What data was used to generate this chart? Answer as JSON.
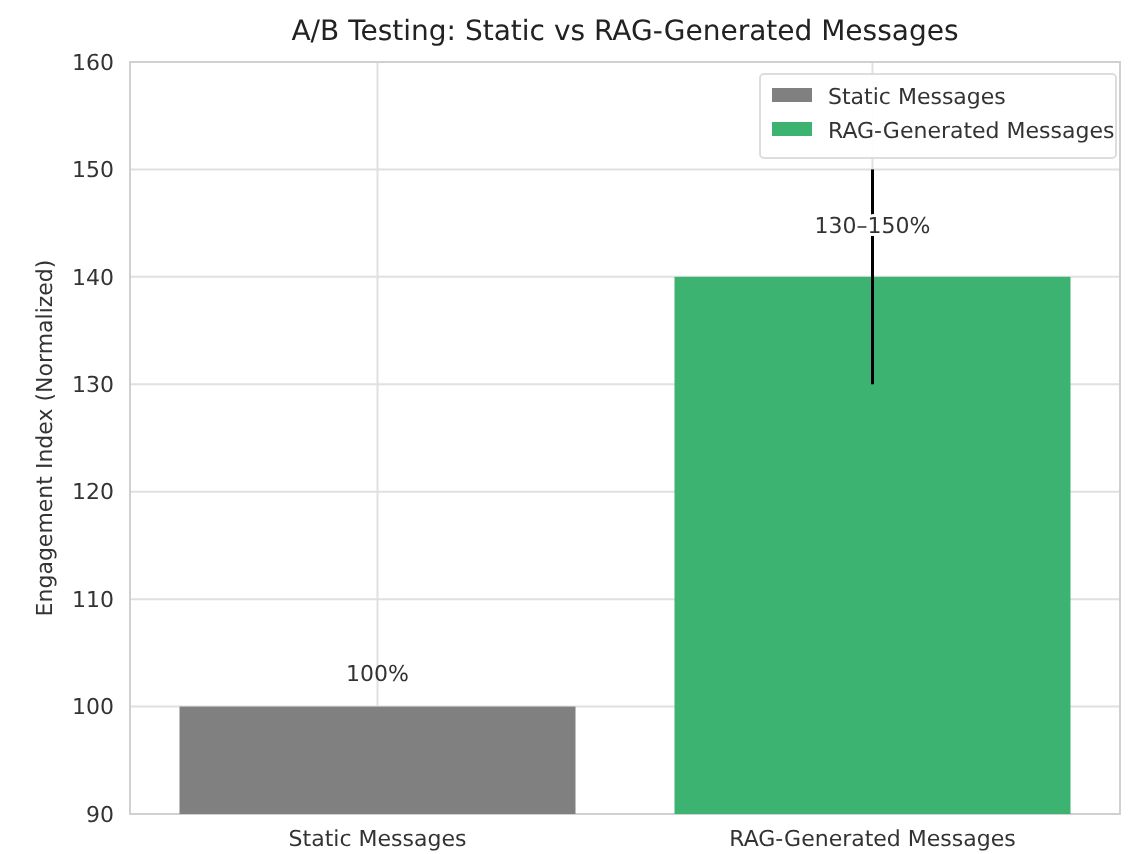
{
  "chart_data": {
    "type": "bar",
    "title": "A/B Testing: Static vs RAG-Generated Messages",
    "ylabel": "Engagement Index (Normalized)",
    "categories": [
      "Static Messages",
      "RAG-Generated Messages"
    ],
    "series": [
      {
        "name": "Static Messages",
        "color": "#808080",
        "values": [
          100,
          null
        ],
        "value_labels": [
          "100%",
          null
        ]
      },
      {
        "name": "RAG-Generated Messages",
        "color": "#3cb371",
        "values": [
          null,
          140
        ],
        "errors": [
          null,
          10
        ]
      }
    ],
    "annotations": [
      {
        "text": "130–150%",
        "x": "RAG-Generated Messages",
        "y": 140
      }
    ],
    "ylim": [
      90,
      160
    ],
    "yticks": [
      90,
      100,
      110,
      120,
      130,
      140,
      150,
      160
    ],
    "grid": true,
    "legend": "top right"
  }
}
